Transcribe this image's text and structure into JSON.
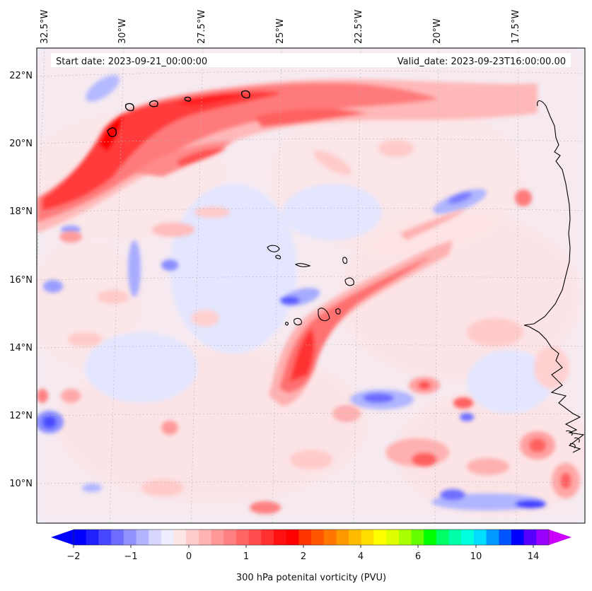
{
  "map": {
    "start_label": "Start date: 2023-09-21_00:00:00",
    "valid_label": "Valid_date: 2023-09-23T16:00:00.00",
    "lon_labels": [
      "32.5°W",
      "30°W",
      "27.5°W",
      "25°W",
      "22.5°W",
      "20°W",
      "17.5°W"
    ],
    "lat_labels": [
      "22°N",
      "20°N",
      "18°N",
      "16°N",
      "14°N",
      "12°N",
      "10°N"
    ],
    "colors": {
      "pv_neg_weak": "#e6e8ff",
      "pv_neg_mid": "#b0b5ff",
      "pv_neg_strong": "#5a5cff",
      "pv_pos_weak": "#ffdede",
      "pv_pos_mid": "#ff9a9a",
      "pv_pos_strong": "#ff3030",
      "pv_pos_max": "#ff0000",
      "coastline": "#000000",
      "background": "#eef0fb"
    }
  },
  "colorbar": {
    "ticks": [
      "−2",
      "−1",
      "0",
      "1",
      "2",
      "4",
      "6",
      "10",
      "14"
    ],
    "label": "300 hPa potenital vorticity (PVU)",
    "colors": [
      "#0000ff",
      "#2020ff",
      "#4646ff",
      "#6c6cff",
      "#9090ff",
      "#b3b3ff",
      "#d6d6ff",
      "#ededff",
      "#ffe6e6",
      "#ffcccc",
      "#ffb3b3",
      "#ff9999",
      "#ff8080",
      "#ff6666",
      "#ff4d4d",
      "#ff3030",
      "#ff1010",
      "#ff0000",
      "#ff3300",
      "#ff5500",
      "#ff7700",
      "#ff9900",
      "#ffbb00",
      "#ffdd00",
      "#ffff00",
      "#ddff00",
      "#aaff00",
      "#66ff00",
      "#00ff00",
      "#00ff66",
      "#00ffaa",
      "#00ffdd",
      "#00ddff",
      "#0099ff",
      "#0055ff",
      "#0000ff",
      "#5500ff",
      "#9900ff"
    ],
    "left_extend_color": "#0000ff",
    "right_extend_color": "#cc00ff"
  }
}
